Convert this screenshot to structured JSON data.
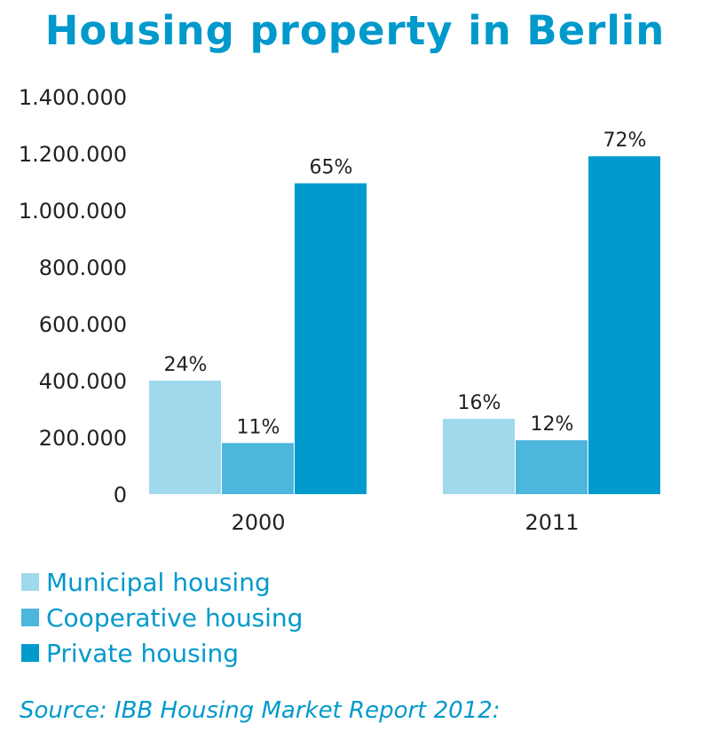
{
  "title": "Housing property in Berlin",
  "source": "Source: IBB Housing Market Report 2012:",
  "colors": {
    "title": "#0099cc",
    "municipal": "#a0d8ec",
    "cooperative": "#4cb6dc",
    "private": "#009acd",
    "axis_text": "#222222"
  },
  "legend": [
    {
      "label": "Municipal housing",
      "color": "#a0d8ec"
    },
    {
      "label": "Cooperative housing",
      "color": "#4cb6dc"
    },
    {
      "label": "Private housing",
      "color": "#009acd"
    }
  ],
  "chart_data": {
    "type": "bar",
    "title": "Housing property in Berlin",
    "categories": [
      "2000",
      "2011"
    ],
    "series": [
      {
        "name": "Municipal housing",
        "values": [
          400000,
          265000
        ],
        "labels": [
          "24%",
          "16%"
        ]
      },
      {
        "name": "Cooperative housing",
        "values": [
          180000,
          190000
        ],
        "labels": [
          "11%",
          "12%"
        ]
      },
      {
        "name": "Private housing",
        "values": [
          1095000,
          1190000
        ],
        "labels": [
          "65%",
          "72%"
        ]
      }
    ],
    "ylim": [
      0,
      1400000
    ],
    "yticks": [
      0,
      200000,
      400000,
      600000,
      800000,
      1000000,
      1200000,
      1400000
    ],
    "ytick_labels": [
      "0",
      "200.000",
      "400.000",
      "600.000",
      "800.000",
      "1.000.000",
      "1.200.000",
      "1.400.000"
    ],
    "xlabel": "",
    "ylabel": "",
    "grid": false,
    "legend_position": "bottom-left"
  }
}
